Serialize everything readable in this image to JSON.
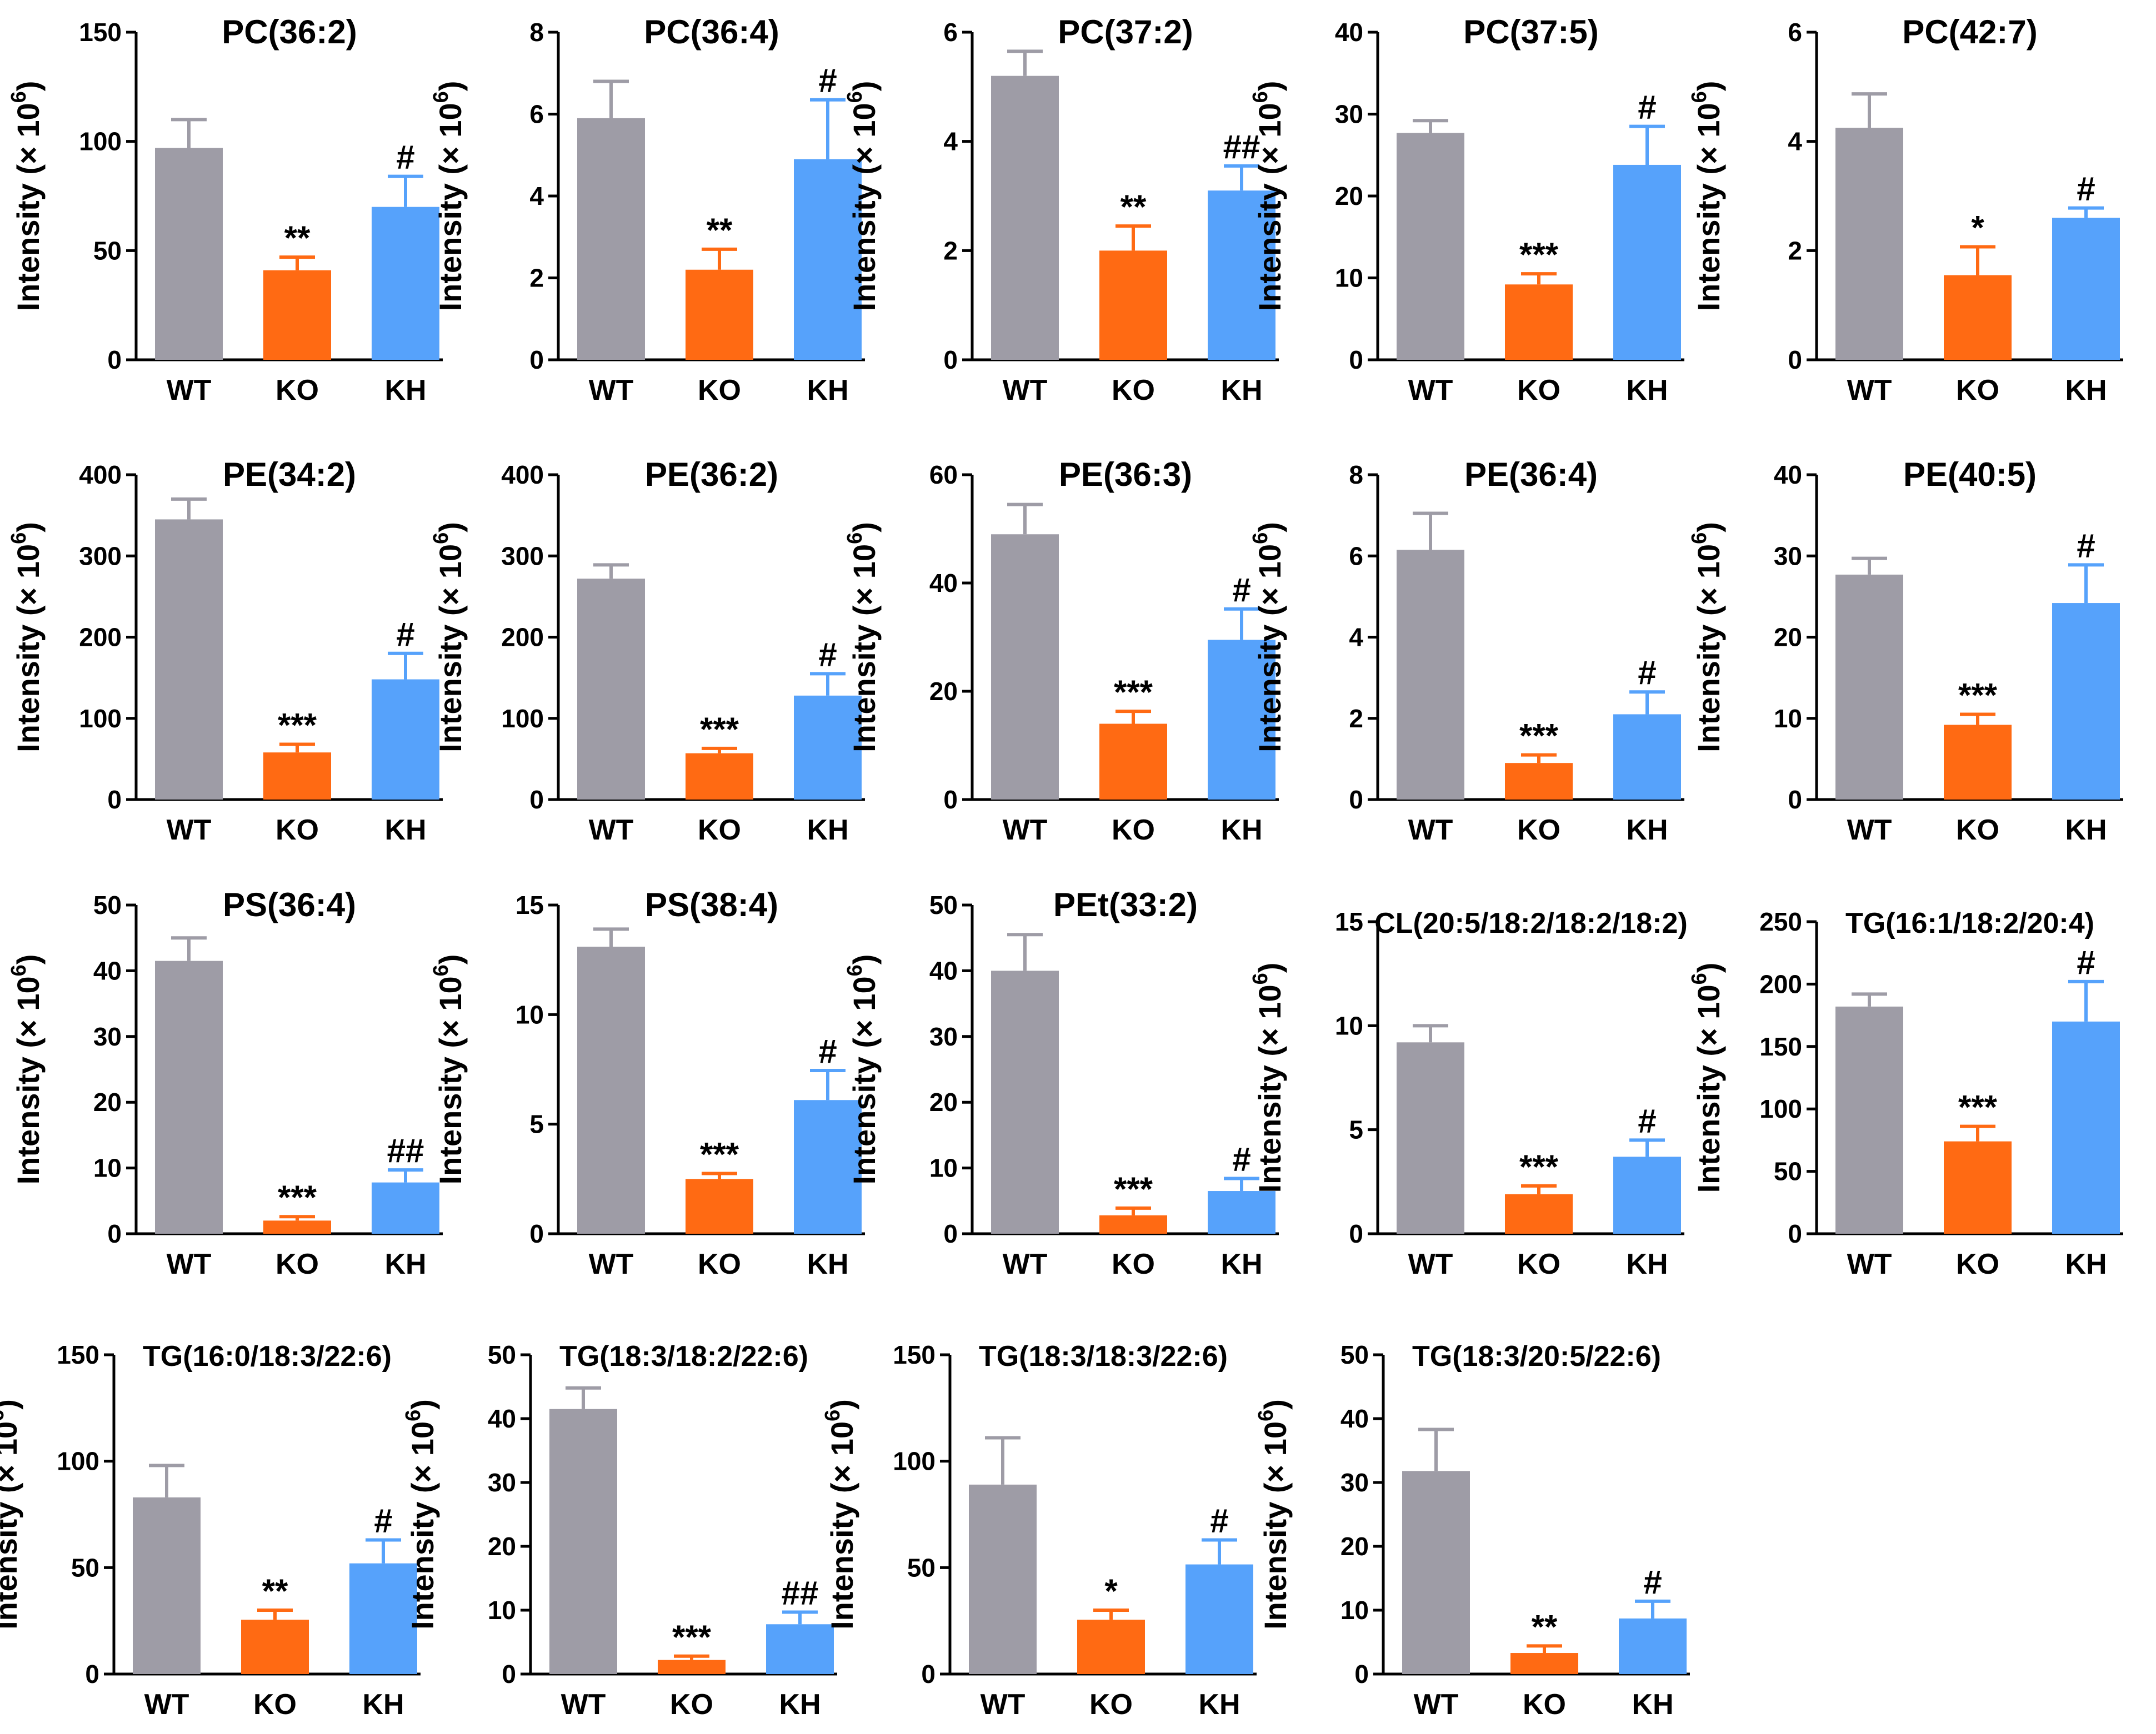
{
  "figure": {
    "categories": [
      "WT",
      "KO",
      "KH"
    ],
    "colors": {
      "WT": "#9e9ca6",
      "KO": "#ff6a13",
      "KH": "#56a2fb",
      "axis": "#000000"
    },
    "ylabel": {
      "prefix": "Intensity (× 10",
      "exponent": "6",
      "suffix": ")"
    }
  },
  "chart_data": [
    {
      "type": "bar",
      "title": "PC(36:2)",
      "ylim": [
        0,
        150
      ],
      "ticks": [
        0,
        50,
        100,
        150
      ],
      "categories": [
        "WT",
        "KO",
        "KH"
      ],
      "values": [
        97,
        41,
        70
      ],
      "errors": [
        13,
        6,
        14
      ],
      "significance": [
        "",
        "**",
        "#"
      ]
    },
    {
      "type": "bar",
      "title": "PC(36:4)",
      "ylim": [
        0,
        8
      ],
      "ticks": [
        0,
        2,
        4,
        6,
        8
      ],
      "categories": [
        "WT",
        "KO",
        "KH"
      ],
      "values": [
        5.9,
        2.2,
        4.9
      ],
      "errors": [
        0.9,
        0.5,
        1.45
      ],
      "significance": [
        "",
        "**",
        "#"
      ]
    },
    {
      "type": "bar",
      "title": "PC(37:2)",
      "ylim": [
        0,
        6
      ],
      "ticks": [
        0,
        2,
        4,
        6
      ],
      "categories": [
        "WT",
        "KO",
        "KH"
      ],
      "values": [
        5.2,
        2.0,
        3.1
      ],
      "errors": [
        0.45,
        0.45,
        0.45
      ],
      "significance": [
        "",
        "**",
        "##"
      ]
    },
    {
      "type": "bar",
      "title": "PC(37:5)",
      "ylim": [
        0,
        40
      ],
      "ticks": [
        0,
        10,
        20,
        30,
        40
      ],
      "categories": [
        "WT",
        "KO",
        "KH"
      ],
      "values": [
        27.7,
        9.2,
        23.8
      ],
      "errors": [
        1.5,
        1.3,
        4.7
      ],
      "significance": [
        "",
        "***",
        "#"
      ]
    },
    {
      "type": "bar",
      "title": "PC(42:7)",
      "ylim": [
        0,
        6
      ],
      "ticks": [
        0,
        2,
        4,
        6
      ],
      "categories": [
        "WT",
        "KO",
        "KH"
      ],
      "values": [
        4.25,
        1.55,
        2.6
      ],
      "errors": [
        0.62,
        0.52,
        0.18
      ],
      "significance": [
        "",
        "*",
        "#"
      ]
    },
    {
      "type": "bar",
      "title": "PE(34:2)",
      "ylim": [
        0,
        400
      ],
      "ticks": [
        0,
        100,
        200,
        300,
        400
      ],
      "categories": [
        "WT",
        "KO",
        "KH"
      ],
      "values": [
        345,
        58,
        148
      ],
      "errors": [
        25,
        10,
        32
      ],
      "significance": [
        "",
        "***",
        "#"
      ]
    },
    {
      "type": "bar",
      "title": "PE(36:2)",
      "ylim": [
        0,
        400
      ],
      "ticks": [
        0,
        100,
        200,
        300,
        400
      ],
      "categories": [
        "WT",
        "KO",
        "KH"
      ],
      "values": [
        272,
        57,
        128
      ],
      "errors": [
        17,
        6,
        27
      ],
      "significance": [
        "",
        "***",
        "#"
      ]
    },
    {
      "type": "bar",
      "title": "PE(36:3)",
      "ylim": [
        0,
        60
      ],
      "ticks": [
        0,
        20,
        40,
        60
      ],
      "categories": [
        "WT",
        "KO",
        "KH"
      ],
      "values": [
        49,
        14,
        29.5
      ],
      "errors": [
        5.5,
        2.3,
        5.7
      ],
      "significance": [
        "",
        "***",
        "#"
      ]
    },
    {
      "type": "bar",
      "title": "PE(36:4)",
      "ylim": [
        0,
        8
      ],
      "ticks": [
        0,
        2,
        4,
        6,
        8
      ],
      "categories": [
        "WT",
        "KO",
        "KH"
      ],
      "values": [
        6.15,
        0.9,
        2.1
      ],
      "errors": [
        0.9,
        0.2,
        0.55
      ],
      "significance": [
        "",
        "***",
        "#"
      ]
    },
    {
      "type": "bar",
      "title": "PE(40:5)",
      "ylim": [
        0,
        40
      ],
      "ticks": [
        0,
        10,
        20,
        30,
        40
      ],
      "categories": [
        "WT",
        "KO",
        "KH"
      ],
      "values": [
        27.7,
        9.2,
        24.2
      ],
      "errors": [
        2.0,
        1.3,
        4.7
      ],
      "significance": [
        "",
        "***",
        "#"
      ]
    },
    {
      "type": "bar",
      "title": "PS(36:4)",
      "ylim": [
        0,
        50
      ],
      "ticks": [
        0,
        10,
        20,
        30,
        40,
        50
      ],
      "categories": [
        "WT",
        "KO",
        "KH"
      ],
      "values": [
        41.5,
        2.0,
        7.8
      ],
      "errors": [
        3.5,
        0.6,
        1.9
      ],
      "significance": [
        "",
        "***",
        "##"
      ]
    },
    {
      "type": "bar",
      "title": "PS(38:4)",
      "ylim": [
        0,
        15
      ],
      "ticks": [
        0,
        5,
        10,
        15
      ],
      "categories": [
        "WT",
        "KO",
        "KH"
      ],
      "values": [
        13.1,
        2.5,
        6.1
      ],
      "errors": [
        0.8,
        0.25,
        1.35
      ],
      "significance": [
        "",
        "***",
        "#"
      ]
    },
    {
      "type": "bar",
      "title": "PEt(33:2)",
      "ylim": [
        0,
        50
      ],
      "ticks": [
        0,
        10,
        20,
        30,
        40,
        50
      ],
      "categories": [
        "WT",
        "KO",
        "KH"
      ],
      "values": [
        40,
        2.8,
        6.5
      ],
      "errors": [
        5.5,
        1.1,
        1.9
      ],
      "significance": [
        "",
        "***",
        "#"
      ]
    },
    {
      "type": "bar",
      "title": "CL(20:5/18:2/18:2/18:2)",
      "ylim": [
        0,
        15
      ],
      "ticks": [
        0,
        5,
        10,
        15
      ],
      "categories": [
        "WT",
        "KO",
        "KH"
      ],
      "values": [
        9.2,
        1.9,
        3.7
      ],
      "errors": [
        0.8,
        0.4,
        0.8
      ],
      "significance": [
        "",
        "***",
        "#"
      ]
    },
    {
      "type": "bar",
      "title": "TG(16:1/18:2/20:4)",
      "ylim": [
        0,
        250
      ],
      "ticks": [
        0,
        50,
        100,
        150,
        200,
        250
      ],
      "categories": [
        "WT",
        "KO",
        "KH"
      ],
      "values": [
        182,
        74,
        170
      ],
      "errors": [
        10,
        12,
        32
      ],
      "significance": [
        "",
        "***",
        "#"
      ]
    },
    {
      "type": "bar",
      "title": "TG(16:0/18:3/22:6)",
      "ylim": [
        0,
        150
      ],
      "ticks": [
        0,
        50,
        100,
        150
      ],
      "categories": [
        "WT",
        "KO",
        "KH"
      ],
      "values": [
        83,
        25.5,
        52
      ],
      "errors": [
        15,
        4.5,
        11
      ],
      "significance": [
        "",
        "**",
        "#"
      ]
    },
    {
      "type": "bar",
      "title": "TG(18:3/18:2/22:6)",
      "ylim": [
        0,
        50
      ],
      "ticks": [
        0,
        10,
        20,
        30,
        40,
        50
      ],
      "categories": [
        "WT",
        "KO",
        "KH"
      ],
      "values": [
        41.5,
        2.2,
        7.8
      ],
      "errors": [
        3.3,
        0.6,
        1.9
      ],
      "significance": [
        "",
        "***",
        "##"
      ]
    },
    {
      "type": "bar",
      "title": "TG(18:3/18:3/22:6)",
      "ylim": [
        0,
        150
      ],
      "ticks": [
        0,
        50,
        100,
        150
      ],
      "categories": [
        "WT",
        "KO",
        "KH"
      ],
      "values": [
        89,
        25.5,
        51.5
      ],
      "errors": [
        22,
        4.5,
        11.5
      ],
      "significance": [
        "",
        "*",
        "#"
      ]
    },
    {
      "type": "bar",
      "title": "TG(18:3/20:5/22:6)",
      "ylim": [
        0,
        50
      ],
      "ticks": [
        0,
        10,
        20,
        30,
        40,
        50
      ],
      "categories": [
        "WT",
        "KO",
        "KH"
      ],
      "values": [
        31.8,
        3.3,
        8.7
      ],
      "errors": [
        6.5,
        1.1,
        2.7
      ],
      "significance": [
        "",
        "**",
        "#"
      ]
    }
  ]
}
